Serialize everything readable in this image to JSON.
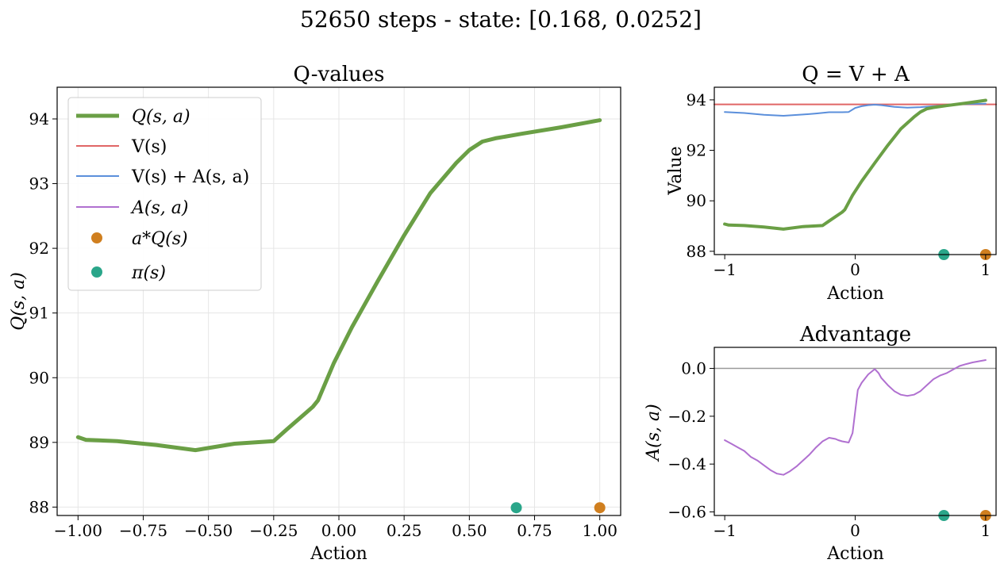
{
  "figure": {
    "suptitle": "52650 steps - state: [0.168, 0.0252]"
  },
  "colors": {
    "q": "#6a9f45",
    "v": "#e06666",
    "v_plus_a": "#5b8fdb",
    "adv": "#b070d0",
    "a_star": "#d07f1f",
    "pi": "#2aa68a",
    "grid": "#e6e6e6",
    "zero": "#999999"
  },
  "chart_data": [
    {
      "type": "line",
      "title": "Q-values",
      "xlabel": "Action",
      "ylabel": "Q(s, a)",
      "xlim": [
        -1.08,
        1.08
      ],
      "ylim": [
        87.87,
        94.49
      ],
      "xticks": [
        -1.0,
        -0.75,
        -0.5,
        -0.25,
        0.0,
        0.25,
        0.5,
        0.75,
        1.0
      ],
      "xtick_labels": [
        "−1.00",
        "−0.75",
        "−0.50",
        "−0.25",
        "0.00",
        "0.25",
        "0.50",
        "0.75",
        "1.00"
      ],
      "yticks": [
        88,
        89,
        90,
        91,
        92,
        93,
        94
      ],
      "ytick_labels": [
        "88",
        "89",
        "90",
        "91",
        "92",
        "93",
        "94"
      ],
      "legend": {
        "position": "upper-left",
        "entries": [
          {
            "key": "q",
            "label": "Q(s, a)",
            "kind": "line"
          },
          {
            "key": "v",
            "label": "V(s)",
            "kind": "line"
          },
          {
            "key": "v_plus_a",
            "label": "V(s) + A(s, a)",
            "kind": "line"
          },
          {
            "key": "adv",
            "label": "A(s, a)",
            "kind": "line"
          },
          {
            "key": "a_star",
            "label": "a*Q(s)",
            "kind": "marker"
          },
          {
            "key": "pi",
            "label": "π(s)",
            "kind": "marker"
          }
        ]
      },
      "series": [
        {
          "name": "Q(s, a)",
          "key": "q",
          "width": 5,
          "x": [
            -1.0,
            -0.97,
            -0.85,
            -0.7,
            -0.55,
            -0.4,
            -0.25,
            -0.2,
            -0.1,
            -0.08,
            -0.02,
            0.05,
            0.15,
            0.25,
            0.35,
            0.45,
            0.5,
            0.55,
            0.6,
            0.7,
            0.85,
            1.0
          ],
          "y": [
            89.08,
            89.04,
            89.02,
            88.96,
            88.88,
            88.98,
            89.02,
            89.2,
            89.55,
            89.65,
            90.22,
            90.78,
            91.5,
            92.2,
            92.85,
            93.32,
            93.52,
            93.65,
            93.7,
            93.77,
            93.87,
            93.98
          ]
        }
      ],
      "markers": [
        {
          "name": "a*Q(s)",
          "key": "a_star",
          "x": 1.0,
          "y": 87.99
        },
        {
          "name": "π(s)",
          "key": "pi",
          "x": 0.68,
          "y": 87.99
        }
      ]
    },
    {
      "type": "line",
      "title": "Q = V + A",
      "xlabel": "Action",
      "ylabel": "Value",
      "xlim": [
        -1.08,
        1.08
      ],
      "ylim": [
        87.87,
        94.5
      ],
      "xticks": [
        -1,
        0,
        1
      ],
      "xtick_labels": [
        "−1",
        "0",
        "1"
      ],
      "yticks": [
        88,
        90,
        92,
        94
      ],
      "ytick_labels": [
        "88",
        "90",
        "92",
        "94"
      ],
      "series": [
        {
          "name": "V(s)",
          "key": "v",
          "width": 2,
          "full_width": true,
          "x": [
            -1.08,
            1.08
          ],
          "y": [
            93.82,
            93.82
          ]
        },
        {
          "name": "V(s) + A(s, a)",
          "key": "v_plus_a",
          "width": 2,
          "x": [
            -1.0,
            -0.85,
            -0.7,
            -0.55,
            -0.4,
            -0.3,
            -0.2,
            -0.1,
            -0.05,
            0.0,
            0.05,
            0.1,
            0.15,
            0.2,
            0.3,
            0.4,
            0.5,
            0.6,
            0.7,
            0.8,
            0.9,
            1.0
          ],
          "y": [
            93.52,
            93.48,
            93.41,
            93.37,
            93.42,
            93.46,
            93.51,
            93.51,
            93.52,
            93.68,
            93.75,
            93.79,
            93.81,
            93.79,
            93.72,
            93.69,
            93.71,
            93.75,
            93.79,
            93.82,
            93.84,
            93.85
          ]
        },
        {
          "name": "Q(s, a)",
          "key": "q",
          "width": 4,
          "x": [
            -1.0,
            -0.97,
            -0.85,
            -0.7,
            -0.55,
            -0.4,
            -0.25,
            -0.2,
            -0.1,
            -0.08,
            -0.02,
            0.05,
            0.15,
            0.25,
            0.35,
            0.45,
            0.5,
            0.55,
            0.6,
            0.7,
            0.85,
            1.0
          ],
          "y": [
            89.08,
            89.04,
            89.02,
            88.96,
            88.88,
            88.98,
            89.02,
            89.2,
            89.55,
            89.65,
            90.22,
            90.78,
            91.5,
            92.2,
            92.85,
            93.32,
            93.52,
            93.65,
            93.7,
            93.77,
            93.87,
            93.98
          ]
        }
      ],
      "markers": [
        {
          "name": "a*Q(s)",
          "key": "a_star",
          "x": 1.0,
          "y": 87.87
        },
        {
          "name": "π(s)",
          "key": "pi",
          "x": 0.68,
          "y": 87.87
        }
      ]
    },
    {
      "type": "line",
      "title": "Advantage",
      "xlabel": "Action",
      "ylabel": "A(s, a)",
      "xlim": [
        -1.08,
        1.08
      ],
      "ylim": [
        -0.615,
        0.088
      ],
      "xticks": [
        -1,
        0,
        1
      ],
      "xtick_labels": [
        "−1",
        "0",
        "1"
      ],
      "yticks": [
        0.0,
        -0.2,
        -0.4,
        -0.6
      ],
      "ytick_labels": [
        "0.0",
        "−0.2",
        "−0.4",
        "−0.6"
      ],
      "hline": {
        "y": 0.0,
        "key": "zero"
      },
      "series": [
        {
          "name": "A(s, a)",
          "key": "adv",
          "width": 2,
          "x": [
            -1.0,
            -0.95,
            -0.9,
            -0.85,
            -0.8,
            -0.75,
            -0.7,
            -0.65,
            -0.6,
            -0.55,
            -0.5,
            -0.45,
            -0.4,
            -0.35,
            -0.3,
            -0.25,
            -0.2,
            -0.15,
            -0.13,
            -0.1,
            -0.05,
            -0.02,
            0.0,
            0.02,
            0.05,
            0.1,
            0.15,
            0.18,
            0.2,
            0.25,
            0.3,
            0.35,
            0.4,
            0.45,
            0.5,
            0.55,
            0.6,
            0.65,
            0.7,
            0.75,
            0.8,
            0.85,
            0.9,
            0.95,
            1.0
          ],
          "y": [
            -0.3,
            -0.315,
            -0.33,
            -0.345,
            -0.37,
            -0.385,
            -0.405,
            -0.425,
            -0.44,
            -0.445,
            -0.43,
            -0.41,
            -0.385,
            -0.36,
            -0.33,
            -0.305,
            -0.29,
            -0.295,
            -0.3,
            -0.305,
            -0.31,
            -0.27,
            -0.18,
            -0.09,
            -0.06,
            -0.025,
            -0.003,
            -0.02,
            -0.04,
            -0.07,
            -0.095,
            -0.11,
            -0.115,
            -0.11,
            -0.095,
            -0.07,
            -0.045,
            -0.03,
            -0.02,
            -0.005,
            0.01,
            0.018,
            0.025,
            0.03,
            0.035
          ]
        }
      ],
      "markers": [
        {
          "name": "a*Q(s)",
          "key": "a_star",
          "x": 1.0,
          "y": -0.615
        },
        {
          "name": "π(s)",
          "key": "pi",
          "x": 0.68,
          "y": -0.615
        }
      ]
    }
  ]
}
